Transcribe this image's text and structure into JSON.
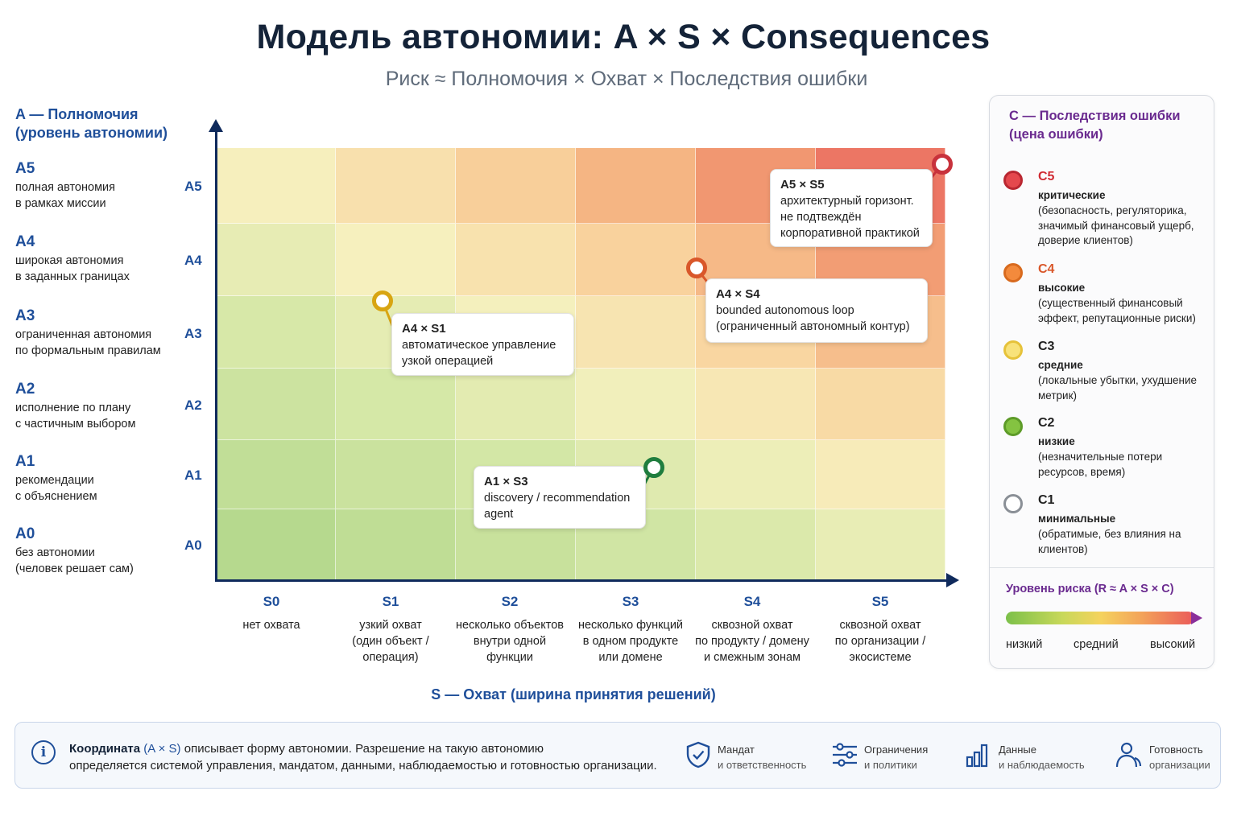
{
  "header": {
    "title": "Модель автономии: A × S × Consequences",
    "subtitle": "Риск ≈ Полномочия × Охват × Последствия ошибки"
  },
  "a_axis": {
    "heading_line1": "A — Полномочия",
    "heading_line2": "(уровень автономии)",
    "levels": [
      {
        "code": "A5",
        "line1": "полная автономия",
        "line2": "в рамках миссии"
      },
      {
        "code": "A4",
        "line1": "широкая автономия",
        "line2": "в заданных границах"
      },
      {
        "code": "A3",
        "line1": "ограниченная автономия",
        "line2": "по формальным правилам"
      },
      {
        "code": "A2",
        "line1": "исполнение по плану",
        "line2": "с частичным выбором"
      },
      {
        "code": "A1",
        "line1": "рекомендации",
        "line2": "с объяснением"
      },
      {
        "code": "A0",
        "line1": "без автономии",
        "line2": "(человек решает сам)"
      }
    ]
  },
  "s_axis": {
    "heading": "S — Охват (ширина принятия решений)",
    "levels": [
      {
        "code": "S0",
        "lines": [
          "нет охвата"
        ]
      },
      {
        "code": "S1",
        "lines": [
          "узкий охват",
          "(один объект /",
          "операция)"
        ]
      },
      {
        "code": "S2",
        "lines": [
          "несколько объектов",
          "внутри одной",
          "функции"
        ]
      },
      {
        "code": "S3",
        "lines": [
          "несколько функций",
          "в одном продукте",
          "или домене"
        ]
      },
      {
        "code": "S4",
        "lines": [
          "сквозной охват",
          "по продукту / домену",
          "и смежным зонам"
        ]
      },
      {
        "code": "S5",
        "lines": [
          "сквозной охват",
          "по организации /",
          "экосистеме"
        ]
      }
    ]
  },
  "callouts": [
    {
      "title": "A5 × S5",
      "lines": [
        "архитектурный горизонт.",
        "не подтвеждён",
        "корпоративной практикой"
      ],
      "color": "#c8323c"
    },
    {
      "title": "A4 × S4",
      "lines": [
        "bounded autonomous loop",
        "(ограниченный автономный контур)"
      ],
      "color": "#d9572a"
    },
    {
      "title": "A4 × S1",
      "lines": [
        "автоматическое управление",
        "узкой операцией"
      ],
      "color": "#d8a512"
    },
    {
      "title": "A1 × S3",
      "lines": [
        "discovery / recommendation",
        "agent"
      ],
      "color": "#1f7d3e"
    }
  ],
  "consequences": {
    "heading_line1": "C — Последствия ошибки",
    "heading_line2": "(цена ошибки)",
    "items": [
      {
        "code": "C5",
        "level": "критические",
        "desc": "(безопасность, регуляторика, значимый финансовый ущерб, доверие клиентов)",
        "color": "#e5484d",
        "code_color": "#d02b33"
      },
      {
        "code": "C4",
        "level": "высокие",
        "desc": "(существенный финансовый эффект, репутационные риски)",
        "color": "#f38a3c",
        "code_color": "#d9572a"
      },
      {
        "code": "C3",
        "level": "средние",
        "desc": "(локальные убытки, ухудшение метрик)",
        "color": "#f6d65c",
        "code_color": "#222222"
      },
      {
        "code": "C2",
        "level": "низкие",
        "desc": "(незначительные потери ресурсов, время)",
        "color": "#84c341",
        "code_color": "#222222"
      },
      {
        "code": "C1",
        "level": "минимальные",
        "desc": "(обратимые, без влияния на клиентов)",
        "color": "#ffffff",
        "code_color": "#222222"
      }
    ],
    "risk": {
      "heading": "Уровень риска (R ≈ A × S × C)",
      "low": "низкий",
      "mid": "средний",
      "high": "высокий"
    }
  },
  "footer": {
    "text_bold": "Координата",
    "text_hl": "(A × S)",
    "text_rest1": " описывает форму автономии. Разрешение на такую автономию",
    "text_rest2": "определяется системой управления, мандатом, данными, наблюдаемостью и готовностью организации.",
    "icons": [
      {
        "name": "shield-icon",
        "line1": "Мандат",
        "line2": "и ответственность"
      },
      {
        "name": "sliders-icon",
        "line1": "Ограничения",
        "line2": "и политики"
      },
      {
        "name": "bar-chart-icon",
        "line1": "Данные",
        "line2": "и наблюдаемость"
      },
      {
        "name": "people-icon",
        "line1": "Готовность",
        "line2": "организации"
      }
    ]
  }
}
